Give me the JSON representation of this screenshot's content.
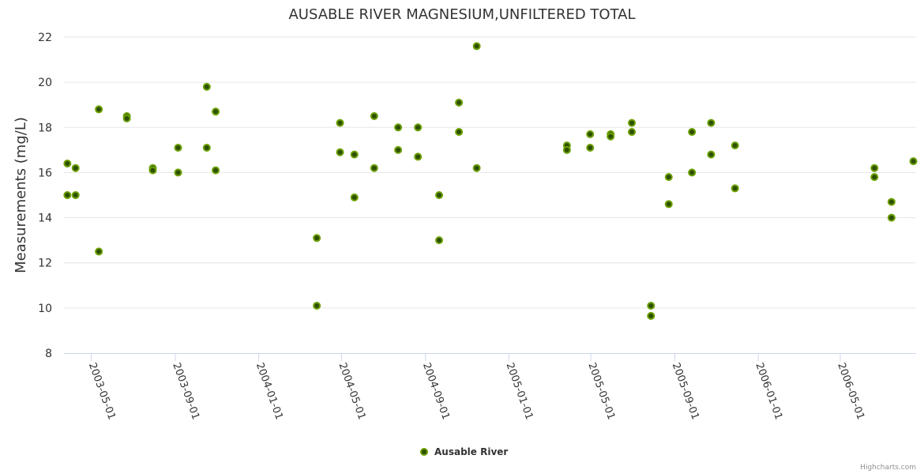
{
  "chart_data": {
    "type": "scatter",
    "title": "AUSABLE RIVER MAGNESIUM,UNFILTERED TOTAL",
    "xlabel": "",
    "ylabel": "Measurements (mg/L)",
    "ylim": [
      8,
      22
    ],
    "yticks": [
      8,
      10,
      12,
      14,
      16,
      18,
      20,
      22
    ],
    "xlim": [
      "2003-03-22",
      "2006-08-20"
    ],
    "xticks": [
      "2003-05-01",
      "2003-09-01",
      "2004-01-01",
      "2004-05-01",
      "2004-09-01",
      "2005-01-01",
      "2005-05-01",
      "2005-09-01",
      "2006-01-01",
      "2006-05-01"
    ],
    "grid": "horizontal",
    "legend_position": "bottom-center",
    "series": [
      {
        "name": "Ausable River",
        "color": "#6aa000",
        "points": [
          {
            "x": "2003-03-27",
            "y": 16.4
          },
          {
            "x": "2003-03-27",
            "y": 15.0
          },
          {
            "x": "2003-04-08",
            "y": 16.2
          },
          {
            "x": "2003-04-08",
            "y": 15.0
          },
          {
            "x": "2003-05-12",
            "y": 18.8
          },
          {
            "x": "2003-05-12",
            "y": 12.5
          },
          {
            "x": "2003-06-22",
            "y": 18.5
          },
          {
            "x": "2003-06-22",
            "y": 18.4
          },
          {
            "x": "2003-07-30",
            "y": 16.2
          },
          {
            "x": "2003-07-30",
            "y": 16.1
          },
          {
            "x": "2003-09-05",
            "y": 17.1
          },
          {
            "x": "2003-09-05",
            "y": 16.0
          },
          {
            "x": "2003-10-17",
            "y": 19.8
          },
          {
            "x": "2003-10-17",
            "y": 17.1
          },
          {
            "x": "2003-10-30",
            "y": 18.7
          },
          {
            "x": "2003-10-30",
            "y": 16.1
          },
          {
            "x": "2004-03-26",
            "y": 13.1
          },
          {
            "x": "2004-03-26",
            "y": 10.1
          },
          {
            "x": "2004-04-29",
            "y": 18.2
          },
          {
            "x": "2004-04-29",
            "y": 16.9
          },
          {
            "x": "2004-05-20",
            "y": 16.8
          },
          {
            "x": "2004-05-20",
            "y": 14.9
          },
          {
            "x": "2004-06-18",
            "y": 18.5
          },
          {
            "x": "2004-06-18",
            "y": 16.2
          },
          {
            "x": "2004-07-23",
            "y": 18.0
          },
          {
            "x": "2004-07-23",
            "y": 17.0
          },
          {
            "x": "2004-08-21",
            "y": 18.0
          },
          {
            "x": "2004-08-21",
            "y": 16.7
          },
          {
            "x": "2004-09-21",
            "y": 15.0
          },
          {
            "x": "2004-09-21",
            "y": 13.0
          },
          {
            "x": "2004-10-20",
            "y": 19.1
          },
          {
            "x": "2004-10-20",
            "y": 17.8
          },
          {
            "x": "2004-11-15",
            "y": 21.6
          },
          {
            "x": "2004-11-15",
            "y": 16.2
          },
          {
            "x": "2005-03-27",
            "y": 17.2
          },
          {
            "x": "2005-03-27",
            "y": 17.0
          },
          {
            "x": "2005-04-30",
            "y": 17.7
          },
          {
            "x": "2005-04-30",
            "y": 17.1
          },
          {
            "x": "2005-05-30",
            "y": 17.7
          },
          {
            "x": "2005-05-30",
            "y": 17.6
          },
          {
            "x": "2005-06-30",
            "y": 18.2
          },
          {
            "x": "2005-06-30",
            "y": 17.8
          },
          {
            "x": "2005-07-28",
            "y": 10.1
          },
          {
            "x": "2005-07-28",
            "y": 9.65
          },
          {
            "x": "2005-08-23",
            "y": 15.8
          },
          {
            "x": "2005-08-23",
            "y": 14.6
          },
          {
            "x": "2005-09-26",
            "y": 17.8
          },
          {
            "x": "2005-09-26",
            "y": 16.0
          },
          {
            "x": "2005-10-24",
            "y": 18.2
          },
          {
            "x": "2005-10-24",
            "y": 16.8
          },
          {
            "x": "2005-11-28",
            "y": 17.2
          },
          {
            "x": "2005-11-28",
            "y": 15.3
          },
          {
            "x": "2006-06-20",
            "y": 16.2
          },
          {
            "x": "2006-06-20",
            "y": 15.8
          },
          {
            "x": "2006-07-15",
            "y": 14.7
          },
          {
            "x": "2006-07-15",
            "y": 14.0
          },
          {
            "x": "2006-08-16",
            "y": 16.5
          }
        ]
      }
    ],
    "credits": "Highcharts.com"
  }
}
